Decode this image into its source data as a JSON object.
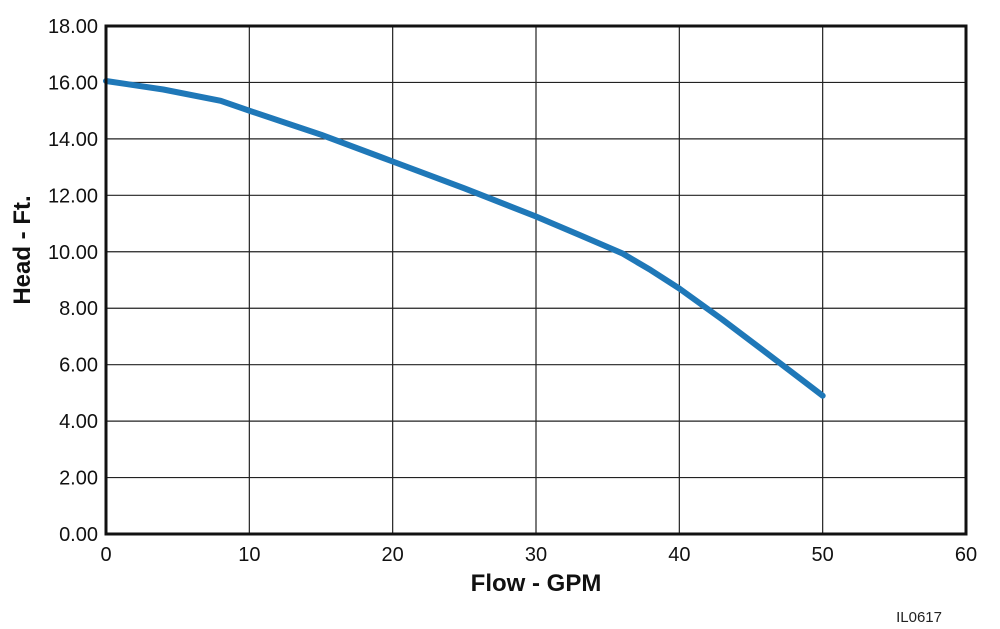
{
  "chart_data": {
    "type": "line",
    "title": "",
    "xlabel": "Flow - GPM",
    "ylabel": "Head - Ft.",
    "xlim": [
      0,
      60
    ],
    "ylim": [
      0,
      18
    ],
    "xticks": [
      0,
      10,
      20,
      30,
      40,
      50,
      60
    ],
    "xtick_labels": [
      "0",
      "10",
      "20",
      "30",
      "40",
      "50",
      "60"
    ],
    "yticks": [
      0,
      2,
      4,
      6,
      8,
      10,
      12,
      14,
      16,
      18
    ],
    "ytick_labels": [
      "0.00",
      "2.00",
      "4.00",
      "6.00",
      "8.00",
      "10.00",
      "12.00",
      "14.00",
      "16.00",
      "18.00"
    ],
    "grid": true,
    "series": [
      {
        "color": "#1f78b8",
        "x": [
          0,
          4,
          8,
          10,
          15,
          20,
          25,
          30,
          33,
          36,
          38,
          40,
          43,
          46,
          50
        ],
        "y": [
          16.05,
          15.75,
          15.35,
          15.0,
          14.15,
          13.2,
          12.25,
          11.25,
          10.6,
          9.95,
          9.35,
          8.7,
          7.6,
          6.45,
          4.9
        ]
      }
    ]
  },
  "figure_id": "IL0617"
}
